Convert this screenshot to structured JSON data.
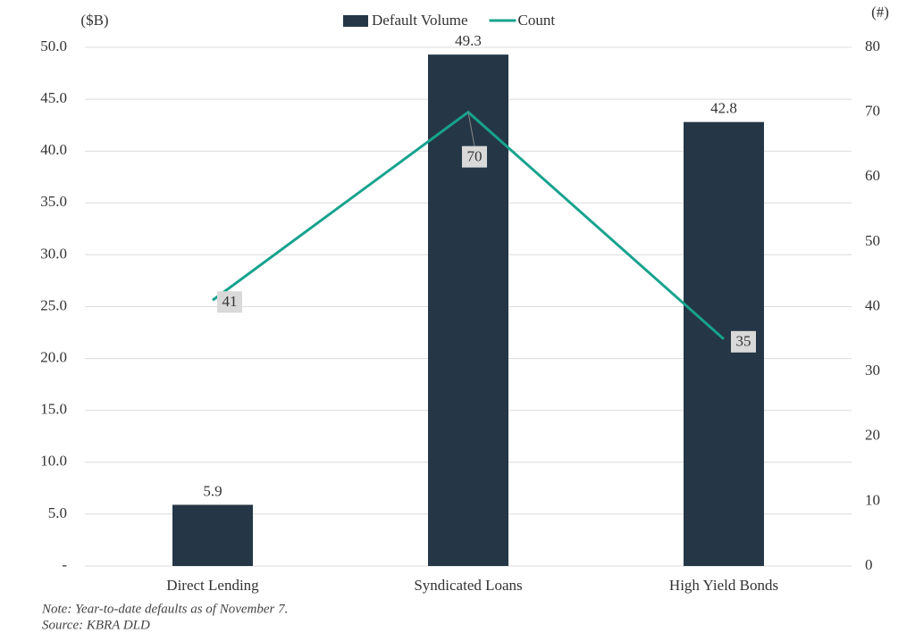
{
  "chart_data": {
    "type": "combo",
    "y_label": "($B)",
    "y2_label": "(#)",
    "categories": [
      "Direct Lending",
      "Syndicated Loans",
      "High Yield Bonds"
    ],
    "series": [
      {
        "name": "Default Volume",
        "type": "bar",
        "color": "#253746",
        "values": [
          5.9,
          49.3,
          42.8
        ]
      },
      {
        "name": "Count",
        "type": "line",
        "axis": "y2",
        "color": "#17a38e",
        "values": [
          41,
          70,
          35
        ]
      }
    ],
    "ylim": [
      0,
      50
    ],
    "yticks": [
      {
        "value": 0,
        "label": "-"
      },
      {
        "value": 5,
        "label": "5.0"
      },
      {
        "value": 10,
        "label": "10.0"
      },
      {
        "value": 15,
        "label": "15.0"
      },
      {
        "value": 20,
        "label": "20.0"
      },
      {
        "value": 25,
        "label": "25.0"
      },
      {
        "value": 30,
        "label": "30.0"
      },
      {
        "value": 35,
        "label": "35.0"
      },
      {
        "value": 40,
        "label": "40.0"
      },
      {
        "value": 45,
        "label": "45.0"
      },
      {
        "value": 50,
        "label": "50.0"
      }
    ],
    "y2lim": [
      0,
      80
    ],
    "y2ticks": [
      0,
      10,
      20,
      30,
      40,
      50,
      60,
      70,
      80
    ],
    "grid": true,
    "legend": "top",
    "notes": [
      "Note: Year-to-date defaults as of November 7.",
      "Source: KBRA DLD"
    ]
  }
}
